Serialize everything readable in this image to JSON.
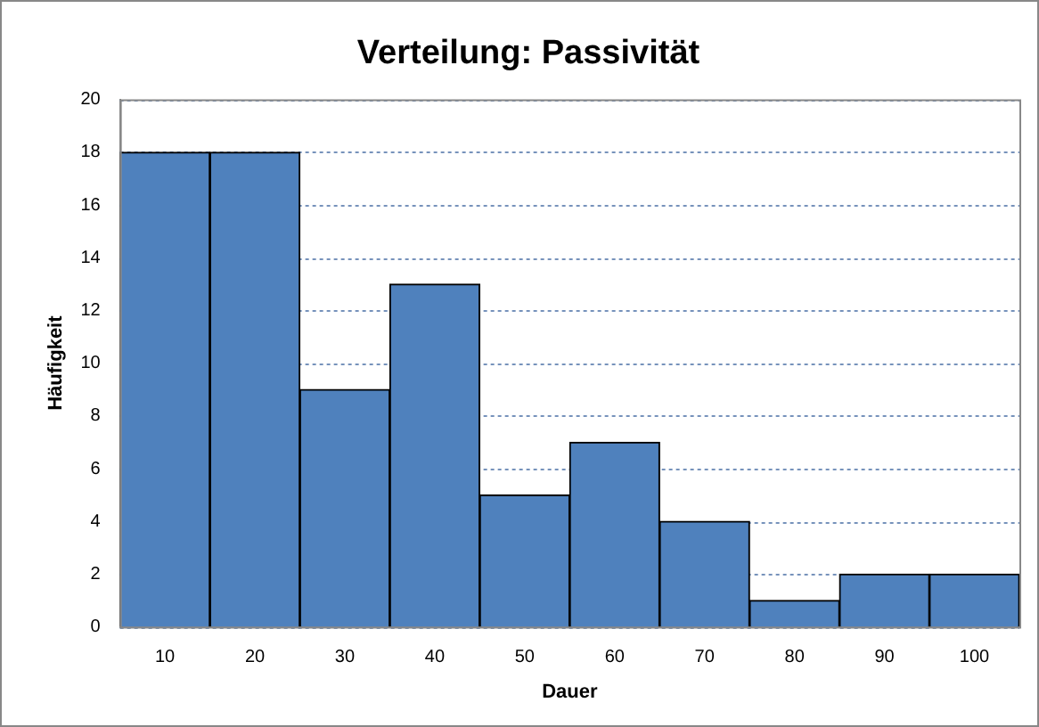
{
  "chart_data": {
    "type": "bar",
    "title": "Verteilung: Passivität",
    "xlabel": "Dauer",
    "ylabel": "Häufigkeit",
    "categories": [
      "10",
      "20",
      "30",
      "40",
      "50",
      "60",
      "70",
      "80",
      "90",
      "100"
    ],
    "values": [
      18,
      18,
      9,
      13,
      5,
      7,
      4,
      1,
      2,
      2
    ],
    "color": "#4f81bd",
    "ylim": [
      0,
      20
    ],
    "yticks": [
      0,
      2,
      4,
      6,
      8,
      10,
      12,
      14,
      16,
      18,
      20
    ],
    "grid": "y"
  }
}
